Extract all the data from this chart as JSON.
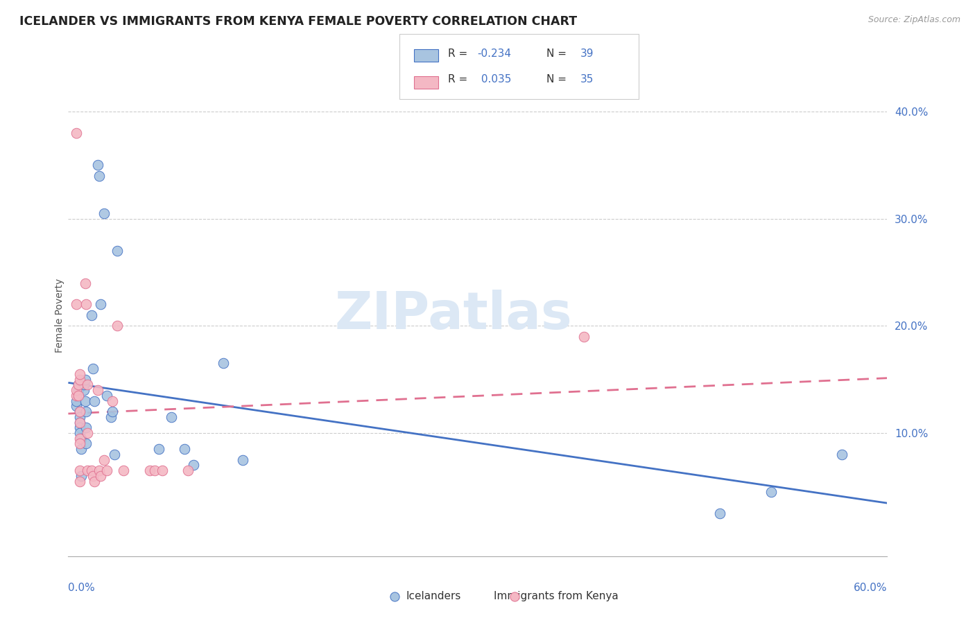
{
  "title": "ICELANDER VS IMMIGRANTS FROM KENYA FEMALE POVERTY CORRELATION CHART",
  "source": "Source: ZipAtlas.com",
  "ylabel": "Female Poverty",
  "right_yticks": [
    "40.0%",
    "30.0%",
    "20.0%",
    "10.0%"
  ],
  "right_ytick_vals": [
    0.4,
    0.3,
    0.2,
    0.1
  ],
  "legend_label1": "Icelanders",
  "legend_label2": "Immigrants from Kenya",
  "color_blue": "#a8c4e0",
  "color_pink": "#f4b8c4",
  "color_blue_edge": "#4472c4",
  "color_pink_edge": "#e07090",
  "color_blue_text": "#4472c4",
  "watermark": "ZIPatlas",
  "background_color": "#ffffff",
  "xlim": [
    -0.005,
    0.63
  ],
  "ylim": [
    -0.015,
    0.435
  ],
  "icelanders_x": [
    0.001,
    0.001,
    0.003,
    0.003,
    0.004,
    0.004,
    0.004,
    0.004,
    0.004,
    0.005,
    0.005,
    0.005,
    0.007,
    0.007,
    0.008,
    0.008,
    0.009,
    0.009,
    0.009,
    0.013,
    0.014,
    0.015,
    0.018,
    0.019,
    0.02,
    0.023,
    0.025,
    0.028,
    0.029,
    0.031,
    0.033,
    0.065,
    0.075,
    0.085,
    0.092,
    0.115,
    0.13,
    0.5,
    0.54,
    0.595
  ],
  "icelanders_y": [
    0.125,
    0.13,
    0.14,
    0.145,
    0.12,
    0.115,
    0.11,
    0.105,
    0.1,
    0.095,
    0.085,
    0.06,
    0.14,
    0.145,
    0.15,
    0.13,
    0.12,
    0.105,
    0.09,
    0.21,
    0.16,
    0.13,
    0.35,
    0.34,
    0.22,
    0.305,
    0.135,
    0.115,
    0.12,
    0.08,
    0.27,
    0.085,
    0.115,
    0.085,
    0.07,
    0.165,
    0.075,
    0.025,
    0.045,
    0.08
  ],
  "kenya_x": [
    0.001,
    0.001,
    0.001,
    0.001,
    0.003,
    0.003,
    0.004,
    0.004,
    0.004,
    0.004,
    0.004,
    0.004,
    0.004,
    0.004,
    0.008,
    0.009,
    0.01,
    0.01,
    0.01,
    0.013,
    0.014,
    0.015,
    0.018,
    0.019,
    0.02,
    0.023,
    0.025,
    0.029,
    0.033,
    0.038,
    0.058,
    0.062,
    0.068,
    0.088,
    0.395
  ],
  "kenya_y": [
    0.135,
    0.14,
    0.22,
    0.38,
    0.135,
    0.145,
    0.15,
    0.155,
    0.12,
    0.11,
    0.095,
    0.09,
    0.065,
    0.055,
    0.24,
    0.22,
    0.145,
    0.1,
    0.065,
    0.065,
    0.06,
    0.055,
    0.14,
    0.065,
    0.06,
    0.075,
    0.065,
    0.13,
    0.2,
    0.065,
    0.065,
    0.065,
    0.065,
    0.065,
    0.19
  ]
}
